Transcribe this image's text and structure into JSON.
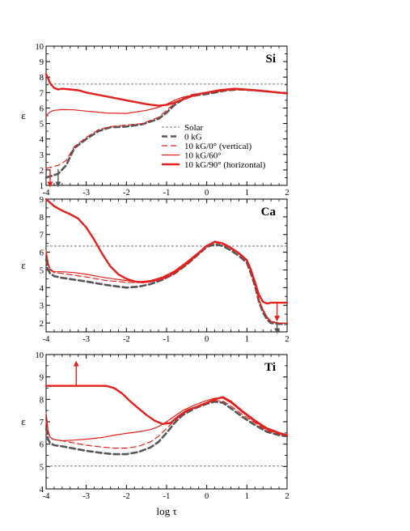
{
  "figure": {
    "xlabel": "log τ",
    "ylabel": "ε"
  },
  "legend": [
    {
      "label": "Solar",
      "color": "#777777",
      "style": "dotted"
    },
    {
      "label": "0 kG",
      "color": "#555555",
      "style": "dashed-thick"
    },
    {
      "label": "10 kG/0° (vertical)",
      "color": "#e3201b",
      "style": "dashed"
    },
    {
      "label": "10 kG/60°",
      "color": "#e3201b",
      "style": "thin"
    },
    {
      "label": "10 kG/90° (horizontal)",
      "color": "#e3201b",
      "style": "thick"
    }
  ],
  "chart_data": [
    {
      "type": "line",
      "title": "Si",
      "xlabel": "",
      "ylabel": "ε",
      "xlim": [
        -4,
        2
      ],
      "ylim": [
        1,
        10
      ],
      "xticks": [
        -4,
        -3,
        -2,
        -1,
        0,
        1,
        2
      ],
      "yticks": [
        1,
        2,
        3,
        4,
        5,
        6,
        7,
        8,
        9,
        10
      ],
      "grid": false,
      "legend_position": "bottom-right",
      "solar": 7.55,
      "series": [
        {
          "name": "0 kG",
          "x": [
            -4.0,
            -3.7,
            -3.5,
            -3.3,
            -3.0,
            -2.7,
            -2.4,
            -2.0,
            -1.6,
            -1.2,
            -1.0,
            -0.8,
            -0.6,
            -0.4,
            -0.2,
            0.0,
            0.2,
            0.5,
            0.8,
            1.2,
            1.6,
            2.0
          ],
          "y": [
            1.5,
            1.75,
            2.3,
            3.4,
            4.0,
            4.5,
            4.75,
            4.8,
            4.95,
            5.3,
            5.7,
            6.2,
            6.55,
            6.75,
            6.85,
            6.9,
            7.0,
            7.15,
            7.2,
            7.15,
            7.05,
            6.95
          ]
        },
        {
          "name": "10 kG/0° (vertical)",
          "x": [
            -4.0,
            -3.7,
            -3.5,
            -3.3,
            -3.0,
            -2.7,
            -2.4,
            -2.0,
            -1.6,
            -1.2,
            -1.0,
            -0.8,
            -0.6,
            -0.4,
            -0.2,
            0.0,
            0.2,
            0.5,
            0.8,
            1.2,
            1.6,
            2.0
          ],
          "y": [
            2.1,
            2.3,
            2.6,
            3.5,
            4.1,
            4.6,
            4.8,
            4.9,
            5.0,
            5.4,
            5.85,
            6.3,
            6.65,
            6.85,
            6.95,
            7.0,
            7.05,
            7.15,
            7.2,
            7.15,
            7.05,
            6.95
          ]
        },
        {
          "name": "10 kG/60°",
          "x": [
            -4.0,
            -3.9,
            -3.8,
            -3.6,
            -3.3,
            -3.0,
            -2.5,
            -2.0,
            -1.5,
            -1.2,
            -1.0,
            -0.8,
            -0.6,
            -0.3,
            0.0,
            0.3,
            0.7,
            1.2,
            1.6,
            2.0
          ],
          "y": [
            5.5,
            5.75,
            5.85,
            5.9,
            5.88,
            5.8,
            5.68,
            5.65,
            5.85,
            6.05,
            6.25,
            6.5,
            6.7,
            6.85,
            7.0,
            7.1,
            7.2,
            7.15,
            7.05,
            6.95
          ]
        },
        {
          "name": "10 kG/90° (horizontal)",
          "x": [
            -4.0,
            -3.9,
            -3.8,
            -3.7,
            -3.6,
            -3.4,
            -3.2,
            -3.0,
            -2.5,
            -2.0,
            -1.5,
            -1.2,
            -1.0,
            -0.8,
            -0.6,
            -0.4,
            -0.2,
            0.0,
            0.3,
            0.7,
            1.2,
            1.6,
            2.0
          ],
          "y": [
            8.2,
            7.6,
            7.3,
            7.2,
            7.25,
            7.2,
            7.15,
            7.0,
            6.75,
            6.5,
            6.25,
            6.15,
            6.2,
            6.35,
            6.55,
            6.75,
            6.9,
            7.0,
            7.15,
            7.25,
            7.15,
            7.05,
            6.95
          ]
        }
      ],
      "arrows": [
        {
          "x": -3.9,
          "from": 2.05,
          "to": 1.05,
          "color": "#e3201b"
        },
        {
          "x": -3.7,
          "from": 2.05,
          "to": 1.05,
          "color": "#555555"
        }
      ]
    },
    {
      "type": "line",
      "title": "Ca",
      "xlabel": "",
      "ylabel": "ε",
      "xlim": [
        -4,
        2
      ],
      "ylim": [
        1.5,
        9
      ],
      "xticks": [
        -4,
        -3,
        -2,
        -1,
        0,
        1,
        2
      ],
      "yticks": [
        2,
        3,
        4,
        5,
        6,
        7,
        8,
        9
      ],
      "grid": false,
      "solar": 6.35,
      "series": [
        {
          "name": "0 kG",
          "x": [
            -4.0,
            -3.95,
            -3.9,
            -3.8,
            -3.6,
            -3.3,
            -3.0,
            -2.5,
            -2.0,
            -1.7,
            -1.4,
            -1.1,
            -0.8,
            -0.5,
            -0.2,
            0.0,
            0.2,
            0.4,
            0.6,
            0.8,
            1.0,
            1.1,
            1.2,
            1.3,
            1.4,
            1.5,
            1.6,
            1.8,
            2.0
          ],
          "y": [
            5.6,
            5.0,
            4.8,
            4.65,
            4.55,
            4.45,
            4.35,
            4.15,
            4.0,
            4.05,
            4.2,
            4.45,
            4.8,
            5.3,
            5.9,
            6.3,
            6.45,
            6.35,
            6.1,
            5.8,
            5.4,
            4.8,
            4.1,
            3.2,
            2.6,
            2.2,
            2.0,
            1.95,
            1.95
          ]
        },
        {
          "name": "10 kG/0° (vertical)",
          "x": [
            -4.0,
            -3.95,
            -3.9,
            -3.8,
            -3.6,
            -3.3,
            -3.0,
            -2.5,
            -2.0,
            -1.7,
            -1.4,
            -1.1,
            -0.8,
            -0.5,
            -0.2,
            0.0,
            0.2,
            0.4,
            0.6,
            0.8,
            1.0,
            1.1,
            1.2,
            1.3,
            1.4,
            1.5,
            1.6,
            1.8,
            2.0
          ],
          "y": [
            6.0,
            5.3,
            5.0,
            4.85,
            4.8,
            4.7,
            4.6,
            4.4,
            4.3,
            4.28,
            4.35,
            4.55,
            4.9,
            5.4,
            5.95,
            6.35,
            6.55,
            6.45,
            6.2,
            5.9,
            5.5,
            4.9,
            4.2,
            3.3,
            2.7,
            2.3,
            2.05,
            2.0,
            2.0
          ]
        },
        {
          "name": "10 kG/60°",
          "x": [
            -4.0,
            -3.95,
            -3.9,
            -3.8,
            -3.6,
            -3.3,
            -3.0,
            -2.5,
            -2.0,
            -1.7,
            -1.4,
            -1.1,
            -0.8,
            -0.5,
            -0.2,
            0.0,
            0.2,
            0.4,
            0.6,
            0.8,
            1.0,
            1.1,
            1.2,
            1.3,
            1.4,
            1.5,
            1.6,
            1.8,
            2.0
          ],
          "y": [
            6.1,
            5.4,
            5.05,
            4.9,
            4.9,
            4.85,
            4.75,
            4.55,
            4.4,
            4.33,
            4.4,
            4.6,
            4.95,
            5.45,
            6.0,
            6.4,
            6.6,
            6.5,
            6.25,
            5.95,
            5.55,
            4.95,
            4.25,
            3.35,
            2.75,
            2.35,
            2.1,
            2.0,
            2.0
          ]
        },
        {
          "name": "10 kG/90° (horizontal)",
          "x": [
            -4.0,
            -3.9,
            -3.8,
            -3.6,
            -3.4,
            -3.2,
            -3.0,
            -2.8,
            -2.6,
            -2.4,
            -2.2,
            -2.0,
            -1.8,
            -1.6,
            -1.4,
            -1.2,
            -1.0,
            -0.8,
            -0.5,
            -0.2,
            0.0,
            0.2,
            0.4,
            0.6,
            0.8,
            1.0,
            1.1,
            1.2,
            1.3,
            1.4,
            1.5,
            1.6,
            1.8,
            2.0
          ],
          "y": [
            9.0,
            8.8,
            8.6,
            8.35,
            8.15,
            7.9,
            7.4,
            6.7,
            5.9,
            5.2,
            4.75,
            4.5,
            4.35,
            4.3,
            4.35,
            4.45,
            4.6,
            4.85,
            5.35,
            5.95,
            6.35,
            6.6,
            6.5,
            6.25,
            5.95,
            5.55,
            5.0,
            4.3,
            3.6,
            3.2,
            3.1,
            3.15,
            3.15,
            3.15
          ]
        }
      ],
      "arrows": [
        {
          "x": 1.75,
          "from": 3.1,
          "to": 2.25,
          "color": "#e3201b"
        },
        {
          "x": 1.75,
          "from": 1.95,
          "to": 1.55,
          "color": "#555555"
        }
      ]
    },
    {
      "type": "line",
      "title": "Ti",
      "xlabel": "log τ",
      "ylabel": "ε",
      "xlim": [
        -4,
        2
      ],
      "ylim": [
        4,
        10
      ],
      "xticks": [
        -4,
        -3,
        -2,
        -1,
        0,
        1,
        2
      ],
      "yticks": [
        4,
        5,
        6,
        7,
        8,
        9,
        10
      ],
      "grid": false,
      "solar": 5.02,
      "series": [
        {
          "name": "0 kG",
          "x": [
            -4.0,
            -3.95,
            -3.9,
            -3.8,
            -3.6,
            -3.3,
            -3.0,
            -2.6,
            -2.3,
            -2.0,
            -1.7,
            -1.4,
            -1.2,
            -1.0,
            -0.8,
            -0.6,
            -0.3,
            0.0,
            0.2,
            0.4,
            0.6,
            0.9,
            1.2,
            1.5,
            1.8,
            2.0
          ],
          "y": [
            6.7,
            6.2,
            6.05,
            5.95,
            5.9,
            5.8,
            5.7,
            5.6,
            5.55,
            5.55,
            5.65,
            5.85,
            6.1,
            6.5,
            6.95,
            7.3,
            7.6,
            7.8,
            7.9,
            7.85,
            7.6,
            7.2,
            6.85,
            6.55,
            6.4,
            6.35
          ]
        },
        {
          "name": "10 kG/0° (vertical)",
          "x": [
            -4.0,
            -3.95,
            -3.9,
            -3.8,
            -3.6,
            -3.3,
            -3.0,
            -2.6,
            -2.3,
            -2.0,
            -1.7,
            -1.4,
            -1.2,
            -1.0,
            -0.8,
            -0.6,
            -0.3,
            0.0,
            0.2,
            0.4,
            0.6,
            0.9,
            1.2,
            1.5,
            1.8,
            2.0
          ],
          "y": [
            7.0,
            6.5,
            6.3,
            6.2,
            6.15,
            6.05,
            5.95,
            5.87,
            5.82,
            5.82,
            5.9,
            6.1,
            6.35,
            6.7,
            7.05,
            7.35,
            7.65,
            7.85,
            7.95,
            7.92,
            7.7,
            7.3,
            6.95,
            6.6,
            6.45,
            6.38
          ]
        },
        {
          "name": "10 kG/60°",
          "x": [
            -4.0,
            -3.95,
            -3.9,
            -3.8,
            -3.6,
            -3.3,
            -3.0,
            -2.6,
            -2.3,
            -2.0,
            -1.7,
            -1.4,
            -1.2,
            -1.0,
            -0.8,
            -0.6,
            -0.3,
            0.0,
            0.2,
            0.4,
            0.6,
            0.9,
            1.2,
            1.5,
            1.8,
            2.0
          ],
          "y": [
            7.4,
            6.6,
            6.3,
            6.2,
            6.15,
            6.18,
            6.22,
            6.3,
            6.4,
            6.48,
            6.55,
            6.65,
            6.78,
            7.0,
            7.25,
            7.5,
            7.75,
            7.95,
            8.05,
            8.05,
            7.85,
            7.4,
            7.0,
            6.65,
            6.48,
            6.42
          ]
        },
        {
          "name": "10 kG/90° (horizontal)",
          "x": [
            -4.0,
            -3.5,
            -3.0,
            -2.5,
            -2.3,
            -2.1,
            -1.9,
            -1.7,
            -1.5,
            -1.3,
            -1.1,
            -0.9,
            -0.7,
            -0.5,
            -0.2,
            0.0,
            0.2,
            0.4,
            0.6,
            0.9,
            1.2,
            1.5,
            1.8,
            2.0
          ],
          "y": [
            8.6,
            8.6,
            8.6,
            8.6,
            8.5,
            8.25,
            7.9,
            7.6,
            7.3,
            7.05,
            6.9,
            6.95,
            7.25,
            7.5,
            7.7,
            7.85,
            8.0,
            8.1,
            7.9,
            7.45,
            7.05,
            6.7,
            6.5,
            6.4
          ]
        }
      ],
      "arrows": [
        {
          "x": -3.25,
          "from": 8.62,
          "to": 9.6,
          "color": "#e3201b"
        }
      ]
    }
  ]
}
